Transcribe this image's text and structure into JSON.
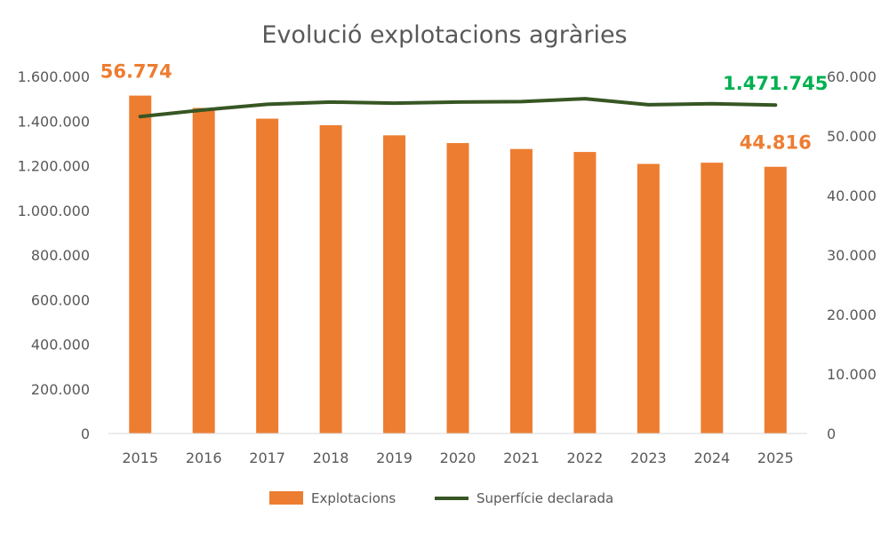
{
  "chart_data": {
    "type": "bar",
    "title": "Evolució explotacions agràries",
    "categories": [
      "2015",
      "2016",
      "2017",
      "2018",
      "2019",
      "2020",
      "2021",
      "2022",
      "2023",
      "2024",
      "2025"
    ],
    "series": [
      {
        "name": "Explotacions",
        "type": "bar",
        "axis": "secondary",
        "color": "#ED7D31",
        "values": [
          56774,
          54700,
          52900,
          51800,
          50100,
          48800,
          47800,
          47300,
          45300,
          45500,
          44816
        ]
      },
      {
        "name": "Superfície declarada",
        "type": "line",
        "axis": "primary",
        "color": "#375623",
        "values": [
          1420000,
          1450000,
          1475000,
          1485000,
          1480000,
          1485000,
          1487000,
          1500000,
          1473000,
          1478000,
          1471745
        ]
      }
    ],
    "y_primary": {
      "ylim": [
        0,
        1600000
      ],
      "ticks": [
        "0",
        "200.000",
        "400.000",
        "600.000",
        "800.000",
        "1.000.000",
        "1.200.000",
        "1.400.000",
        "1.600.000"
      ]
    },
    "y_secondary": {
      "ylim": [
        0,
        60000
      ],
      "ticks": [
        "0",
        "10.000",
        "20.000",
        "30.000",
        "40.000",
        "50.000",
        "60.000"
      ]
    },
    "annotations": [
      {
        "text": "56.774",
        "series": "Explotacions",
        "index": 0,
        "color": "#ED7D31"
      },
      {
        "text": "44.816",
        "series": "Explotacions",
        "index": 10,
        "color": "#ED7D31"
      },
      {
        "text": "1.471.745",
        "series": "Superfície declarada",
        "index": 10,
        "color": "#00B050"
      }
    ],
    "legend": "bottom",
    "grid": false
  }
}
